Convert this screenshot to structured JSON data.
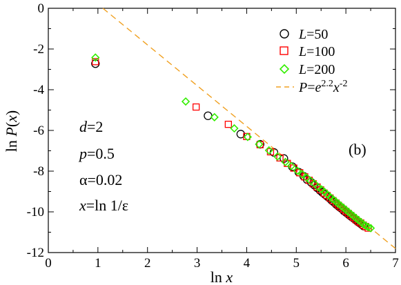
{
  "chart_data": {
    "type": "scatter",
    "xlabel": "ln x",
    "ylabel": "ln P(x)",
    "xlim": [
      0,
      7
    ],
    "ylim": [
      -12,
      0
    ],
    "x_ticks": [
      0,
      1,
      2,
      3,
      4,
      5,
      6,
      7
    ],
    "y_ticks": [
      0,
      -2,
      -4,
      -6,
      -8,
      -10,
      -12
    ],
    "panel_label": "(b)",
    "annotations": [
      "d=2",
      "p=0.5",
      "α=0.02",
      "x=ln 1/ε"
    ],
    "legend_position": "top-right",
    "series": [
      {
        "name": "L=50",
        "marker": "circle",
        "color": "#000000",
        "points": [
          [
            0.95,
            -2.72
          ],
          [
            3.22,
            -5.28
          ],
          [
            3.88,
            -6.18
          ],
          [
            4.27,
            -6.68
          ],
          [
            4.55,
            -7.08
          ],
          [
            4.75,
            -7.38
          ],
          [
            4.92,
            -7.78
          ],
          [
            5.05,
            -8.05
          ],
          [
            5.15,
            -8.25
          ],
          [
            5.22,
            -8.42
          ],
          [
            5.3,
            -8.55
          ],
          [
            5.36,
            -8.68
          ],
          [
            5.42,
            -8.82
          ],
          [
            5.48,
            -8.95
          ],
          [
            5.53,
            -9.05
          ],
          [
            5.58,
            -9.15
          ],
          [
            5.63,
            -9.25
          ],
          [
            5.68,
            -9.35
          ],
          [
            5.72,
            -9.45
          ],
          [
            5.76,
            -9.52
          ],
          [
            5.8,
            -9.62
          ],
          [
            5.84,
            -9.7
          ],
          [
            5.88,
            -9.78
          ],
          [
            5.92,
            -9.85
          ],
          [
            5.96,
            -9.95
          ],
          [
            6.0,
            -10.02
          ],
          [
            6.04,
            -10.1
          ],
          [
            6.08,
            -10.18
          ],
          [
            6.12,
            -10.25
          ],
          [
            6.16,
            -10.32
          ],
          [
            6.2,
            -10.4
          ],
          [
            6.24,
            -10.48
          ],
          [
            6.28,
            -10.55
          ],
          [
            6.32,
            -10.62
          ],
          [
            6.36,
            -10.7
          ]
        ]
      },
      {
        "name": "L=100",
        "marker": "square",
        "color": "#ff0000",
        "points": [
          [
            0.95,
            -2.62
          ],
          [
            2.98,
            -4.85
          ],
          [
            3.63,
            -5.7
          ],
          [
            4.0,
            -6.3
          ],
          [
            4.27,
            -6.7
          ],
          [
            4.48,
            -7.05
          ],
          [
            4.67,
            -7.35
          ],
          [
            4.82,
            -7.62
          ],
          [
            4.95,
            -7.85
          ],
          [
            5.07,
            -8.08
          ],
          [
            5.17,
            -8.28
          ],
          [
            5.26,
            -8.45
          ],
          [
            5.34,
            -8.62
          ],
          [
            5.42,
            -8.78
          ],
          [
            5.49,
            -8.92
          ],
          [
            5.56,
            -9.08
          ],
          [
            5.62,
            -9.2
          ],
          [
            5.68,
            -9.32
          ],
          [
            5.74,
            -9.45
          ],
          [
            5.8,
            -9.57
          ],
          [
            5.85,
            -9.68
          ],
          [
            5.9,
            -9.78
          ],
          [
            5.95,
            -9.88
          ],
          [
            6.0,
            -9.98
          ],
          [
            6.05,
            -10.08
          ],
          [
            6.1,
            -10.18
          ],
          [
            6.15,
            -10.28
          ],
          [
            6.2,
            -10.38
          ],
          [
            6.25,
            -10.48
          ],
          [
            6.3,
            -10.55
          ],
          [
            6.35,
            -10.65
          ],
          [
            6.4,
            -10.72
          ],
          [
            6.45,
            -10.8
          ]
        ]
      },
      {
        "name": "L=200",
        "marker": "diamond",
        "color": "#33ee00",
        "points": [
          [
            0.95,
            -2.42
          ],
          [
            2.77,
            -4.58
          ],
          [
            3.35,
            -5.35
          ],
          [
            3.75,
            -5.9
          ],
          [
            4.02,
            -6.32
          ],
          [
            4.25,
            -6.68
          ],
          [
            4.45,
            -6.98
          ],
          [
            4.62,
            -7.28
          ],
          [
            4.78,
            -7.55
          ],
          [
            4.9,
            -7.75
          ],
          [
            5.02,
            -7.98
          ],
          [
            5.12,
            -8.15
          ],
          [
            5.21,
            -8.32
          ],
          [
            5.29,
            -8.48
          ],
          [
            5.37,
            -8.62
          ],
          [
            5.44,
            -8.78
          ],
          [
            5.51,
            -8.9
          ],
          [
            5.57,
            -9.02
          ],
          [
            5.63,
            -9.15
          ],
          [
            5.69,
            -9.28
          ],
          [
            5.75,
            -9.4
          ],
          [
            5.8,
            -9.5
          ],
          [
            5.85,
            -9.6
          ],
          [
            5.9,
            -9.7
          ],
          [
            5.95,
            -9.8
          ],
          [
            6.0,
            -9.9
          ],
          [
            6.05,
            -10.0
          ],
          [
            6.1,
            -10.1
          ],
          [
            6.15,
            -10.2
          ],
          [
            6.2,
            -10.3
          ],
          [
            6.25,
            -10.4
          ],
          [
            6.3,
            -10.5
          ],
          [
            6.35,
            -10.6
          ],
          [
            6.4,
            -10.68
          ],
          [
            6.45,
            -10.75
          ],
          [
            6.5,
            -10.8
          ]
        ]
      },
      {
        "name": "P=e^{2.2}x^{-2}",
        "marker": "dashed-line",
        "color": "#f0a020",
        "line": {
          "intercept": 2.2,
          "slope": -2,
          "x_range": [
            1.1,
            7.0
          ]
        }
      }
    ]
  }
}
